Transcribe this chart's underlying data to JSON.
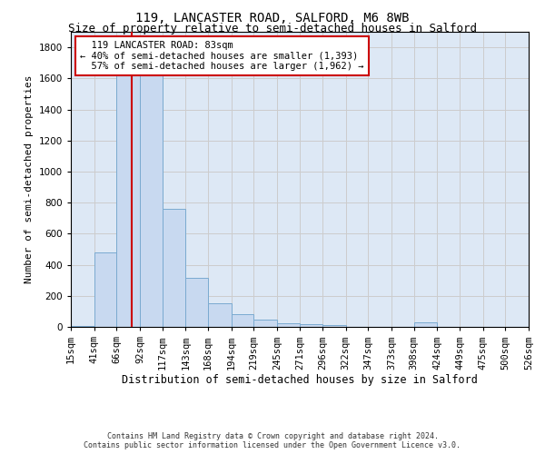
{
  "title": "119, LANCASTER ROAD, SALFORD, M6 8WB",
  "subtitle": "Size of property relative to semi-detached houses in Salford",
  "xlabel": "Distribution of semi-detached houses by size in Salford",
  "ylabel": "Number of semi-detached properties",
  "footer_line1": "Contains HM Land Registry data © Crown copyright and database right 2024.",
  "footer_line2": "Contains public sector information licensed under the Open Government Licence v3.0.",
  "bar_edges": [
    15,
    41,
    66,
    92,
    117,
    143,
    168,
    194,
    219,
    245,
    271,
    296,
    322,
    347,
    373,
    398,
    424,
    449,
    475,
    500,
    526
  ],
  "bar_heights": [
    5,
    480,
    1650,
    1640,
    760,
    315,
    150,
    80,
    45,
    25,
    18,
    12,
    0,
    0,
    0,
    28,
    0,
    0,
    0,
    0,
    0
  ],
  "bar_color": "#c8d9f0",
  "bar_edge_color": "#7aaad0",
  "property_size": 83,
  "property_label": "119 LANCASTER ROAD: 83sqm",
  "pct_smaller": 40,
  "n_smaller": 1393,
  "pct_larger": 57,
  "n_larger": 1962,
  "vline_color": "#cc0000",
  "annotation_box_color": "#cc0000",
  "ylim": [
    0,
    1900
  ],
  "yticks": [
    0,
    200,
    400,
    600,
    800,
    1000,
    1200,
    1400,
    1600,
    1800
  ],
  "grid_color": "#cccccc",
  "bg_color": "#dde8f5",
  "title_fontsize": 10,
  "subtitle_fontsize": 9,
  "tick_fontsize": 7.5,
  "ylabel_fontsize": 8,
  "xlabel_fontsize": 8.5,
  "annotation_fontsize": 7.5,
  "footer_fontsize": 6
}
